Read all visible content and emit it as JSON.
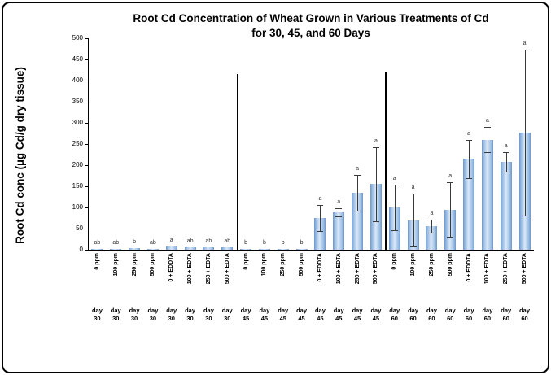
{
  "chart_data": {
    "type": "bar",
    "title": "Root Cd Concentration of Wheat Grown in Various Treatments of Cd for 30, 45, and 60 Days",
    "title_line1": "Root Cd Concentration of Wheat Grown in Various Treatments of Cd",
    "title_line2": "for 30, 45, and 60 Days",
    "ylabel": "Root Cd conc (µg Cd/g dry tissue)",
    "ylim": [
      0,
      500
    ],
    "ytick_step": 50,
    "yticks": [
      0,
      50,
      100,
      150,
      200,
      250,
      300,
      350,
      400,
      450,
      500
    ],
    "grid": false,
    "legend": "none",
    "bar_color_edge": "#6d98cb",
    "bar_color_center": "#d9e8f8",
    "groups": [
      {
        "day_line1": "day",
        "day_line2": "30",
        "points": [
          {
            "treatment": "0 ppm",
            "value": 2,
            "error": 0,
            "letter": "ab"
          },
          {
            "treatment": "100 ppm",
            "value": 2,
            "error": 0,
            "letter": "ab"
          },
          {
            "treatment": "250 ppm",
            "value": 4,
            "error": 0,
            "letter": "b"
          },
          {
            "treatment": "500 ppm",
            "value": 2,
            "error": 0,
            "letter": "ab"
          },
          {
            "treatment": "0 + EDDTA",
            "value": 8,
            "error": 0,
            "letter": "a"
          },
          {
            "treatment": "100 + EDTA",
            "value": 5,
            "error": 0,
            "letter": "ab"
          },
          {
            "treatment": "250 + EDTA",
            "value": 5,
            "error": 0,
            "letter": "ab"
          },
          {
            "treatment": "500 + EDTA",
            "value": 5,
            "error": 0,
            "letter": "ab"
          }
        ]
      },
      {
        "day_line1": "day",
        "day_line2": "45",
        "points": [
          {
            "treatment": "0 ppm",
            "value": 2,
            "error": 0,
            "letter": "b"
          },
          {
            "treatment": "100 ppm",
            "value": 2,
            "error": 0,
            "letter": "b"
          },
          {
            "treatment": "250 ppm",
            "value": 2,
            "error": 0,
            "letter": "b"
          },
          {
            "treatment": "500 ppm",
            "value": 2,
            "error": 0,
            "letter": "b"
          },
          {
            "treatment": "0 + EDDTA",
            "value": 75,
            "error": 30,
            "letter": "a"
          },
          {
            "treatment": "100 + EDTA",
            "value": 88,
            "error": 10,
            "letter": "a"
          },
          {
            "treatment": "250 + EDTA",
            "value": 135,
            "error": 42,
            "letter": "a"
          },
          {
            "treatment": "500 + EDTA",
            "value": 155,
            "error": 88,
            "letter": "a"
          }
        ]
      },
      {
        "day_line1": "day",
        "day_line2": "60",
        "points": [
          {
            "treatment": "0 ppm",
            "value": 100,
            "error": 54,
            "letter": "a"
          },
          {
            "treatment": "100 ppm",
            "value": 70,
            "error": 63,
            "letter": "a"
          },
          {
            "treatment": "250 ppm",
            "value": 56,
            "error": 15,
            "letter": "a"
          },
          {
            "treatment": "500 ppm",
            "value": 95,
            "error": 65,
            "letter": "a"
          },
          {
            "treatment": "0 + EDDTA",
            "value": 215,
            "error": 45,
            "letter": "a"
          },
          {
            "treatment": "100 + EDTA",
            "value": 260,
            "error": 30,
            "letter": "a"
          },
          {
            "treatment": "250 + EDTA",
            "value": 208,
            "error": 23,
            "letter": "a"
          },
          {
            "treatment": "500 + EDTA",
            "value": 277,
            "error": 196,
            "letter": "a"
          }
        ]
      }
    ],
    "separators": [
      {
        "after_group": 0,
        "top_value": 415
      },
      {
        "after_group": 1,
        "top_value": 422
      }
    ]
  }
}
